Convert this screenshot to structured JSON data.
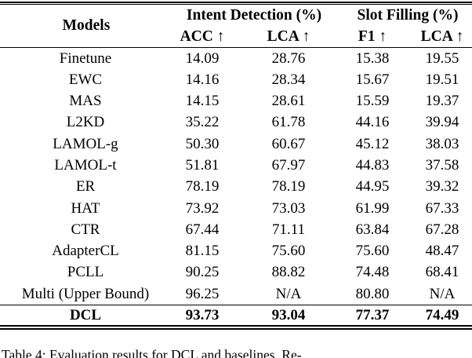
{
  "table": {
    "models_header": "Models",
    "group_headers": {
      "intent_detection": "Intent Detection (%)",
      "slot_filling": "Slot Filling (%)"
    },
    "sub_headers": {
      "acc": "ACC ↑",
      "lca_intent": "LCA ↑",
      "f1": "F1 ↑",
      "lca_slot": "LCA ↑"
    },
    "rows": [
      {
        "model": "Finetune",
        "acc": "14.09",
        "lca1": "28.76",
        "f1": "15.38",
        "lca2": "19.55"
      },
      {
        "model": "EWC",
        "acc": "14.16",
        "lca1": "28.34",
        "f1": "15.67",
        "lca2": "19.51"
      },
      {
        "model": "MAS",
        "acc": "14.15",
        "lca1": "28.61",
        "f1": "15.59",
        "lca2": "19.37"
      },
      {
        "model": "L2KD",
        "acc": "35.22",
        "lca1": "61.78",
        "f1": "44.16",
        "lca2": "39.94"
      },
      {
        "model": "LAMOL-g",
        "acc": "50.30",
        "lca1": "60.67",
        "f1": "45.12",
        "lca2": "38.03"
      },
      {
        "model": "LAMOL-t",
        "acc": "51.81",
        "lca1": "67.97",
        "f1": "44.83",
        "lca2": "37.58"
      },
      {
        "model": "ER",
        "acc": "78.19",
        "lca1": "78.19",
        "f1": "44.95",
        "lca2": "39.32"
      },
      {
        "model": "HAT",
        "acc": "73.92",
        "lca1": "73.03",
        "f1": "61.99",
        "lca2": "67.33"
      },
      {
        "model": "CTR",
        "acc": "67.44",
        "lca1": "71.11",
        "f1": "63.84",
        "lca2": "67.28"
      },
      {
        "model": "AdapterCL",
        "acc": "81.15",
        "lca1": "75.60",
        "f1": "75.60",
        "lca2": "48.47"
      },
      {
        "model": "PCLL",
        "acc": "90.25",
        "lca1": "88.82",
        "f1": "74.48",
        "lca2": "68.41"
      },
      {
        "model": "Multi (Upper Bound)",
        "acc": "96.25",
        "lca1": "N/A",
        "f1": "80.80",
        "lca2": "N/A"
      }
    ],
    "final_row": {
      "model": "DCL",
      "acc": "93.73",
      "lca1": "93.04",
      "f1": "77.37",
      "lca2": "74.49"
    }
  },
  "caption": {
    "partial_text": "Table 4: Evaluation results for DCL and baselines. Re-"
  },
  "colors": {
    "text": "#000000",
    "background": "#ffffff",
    "rule": "#000000"
  }
}
